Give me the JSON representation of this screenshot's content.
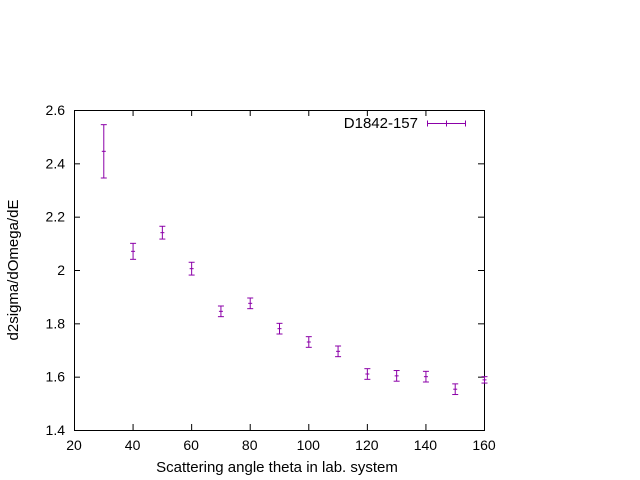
{
  "chart_data": {
    "type": "scatter",
    "title": "",
    "xlabel": "Scattering angle theta in lab. system",
    "ylabel": "d2sigma/dOmega/dE",
    "xlim": [
      20,
      160
    ],
    "ylim": [
      1.4,
      2.6
    ],
    "xticks": [
      20,
      40,
      60,
      80,
      100,
      120,
      140,
      160
    ],
    "yticks": [
      1.4,
      1.6,
      1.8,
      2.0,
      2.2,
      2.4,
      2.6
    ],
    "xtick_labels": [
      "20",
      "40",
      "60",
      "80",
      "100",
      "120",
      "140",
      "160"
    ],
    "ytick_labels": [
      "1.4",
      "1.6",
      "1.8",
      "2",
      "2.2",
      "2.4",
      "2.6"
    ],
    "grid": false,
    "legend_position": "top-right",
    "series": [
      {
        "name": "D1842-157",
        "color": "#8b00a8",
        "style": "errorbars",
        "points": [
          {
            "x": 30,
            "y": 2.445,
            "err": 0.1
          },
          {
            "x": 40,
            "y": 2.07,
            "err": 0.03
          },
          {
            "x": 50,
            "y": 2.14,
            "err": 0.024
          },
          {
            "x": 60,
            "y": 2.005,
            "err": 0.024
          },
          {
            "x": 70,
            "y": 1.845,
            "err": 0.02
          },
          {
            "x": 80,
            "y": 1.875,
            "err": 0.02
          },
          {
            "x": 90,
            "y": 1.78,
            "err": 0.02
          },
          {
            "x": 100,
            "y": 1.73,
            "err": 0.02
          },
          {
            "x": 110,
            "y": 1.695,
            "err": 0.02
          },
          {
            "x": 120,
            "y": 1.61,
            "err": 0.02
          },
          {
            "x": 130,
            "y": 1.603,
            "err": 0.02
          },
          {
            "x": 140,
            "y": 1.6,
            "err": 0.02
          },
          {
            "x": 150,
            "y": 1.553,
            "err": 0.02
          },
          {
            "x": 160,
            "y": 1.588,
            "err": 0.012
          }
        ]
      }
    ]
  }
}
